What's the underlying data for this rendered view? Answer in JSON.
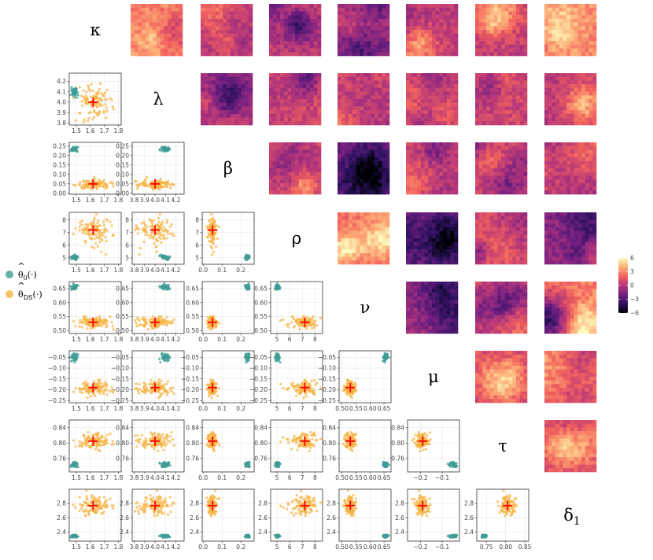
{
  "chart_data": {
    "type": "scatter",
    "title": "",
    "parameters": [
      "κ",
      "λ",
      "β",
      "ρ",
      "ν",
      "μ",
      "τ",
      "δ1"
    ],
    "parameter_labels": [
      {
        "base": "κ",
        "sub": ""
      },
      {
        "base": "λ",
        "sub": ""
      },
      {
        "base": "β",
        "sub": ""
      },
      {
        "base": "ρ",
        "sub": ""
      },
      {
        "base": "ν",
        "sub": ""
      },
      {
        "base": "μ",
        "sub": ""
      },
      {
        "base": "τ",
        "sub": ""
      },
      {
        "base": "δ",
        "sub": "1"
      }
    ],
    "legend": {
      "placement": "left",
      "entries": [
        {
          "label_base": "θ",
          "label_hat": "^",
          "label_sub": "0",
          "label_suffix": "(·)",
          "color": "#3f9c96"
        },
        {
          "label_base": "θ",
          "label_hat": "^",
          "label_sub": "DS",
          "label_suffix": "(·)",
          "color": "#f7b445"
        }
      ]
    },
    "series": [
      {
        "label_sub": "0",
        "color": "#3f9c96",
        "centers": [
          1.49,
          4.1,
          0.235,
          5.05,
          0.655,
          -0.05,
          0.745,
          2.34
        ],
        "spreads": [
          0.012,
          0.025,
          0.006,
          0.09,
          0.004,
          0.008,
          0.004,
          0.012
        ],
        "n_points": 40
      },
      {
        "label_sub": "DS",
        "color": "#f7b445",
        "centers": [
          1.62,
          4.0,
          0.05,
          7.2,
          0.53,
          -0.19,
          0.805,
          2.77
        ],
        "spreads": [
          0.065,
          0.085,
          0.012,
          0.5,
          0.01,
          0.015,
          0.01,
          0.07
        ],
        "n_points": 110
      }
    ],
    "true_values": {
      "marker": "+",
      "color": "#ff0000",
      "values": [
        1.62,
        4.0,
        0.05,
        7.2,
        0.53,
        -0.19,
        0.805,
        2.77
      ]
    },
    "axes": {
      "limits": [
        [
          1.45,
          1.82
        ],
        [
          3.78,
          4.28
        ],
        [
          -0.005,
          0.27
        ],
        [
          4.5,
          8.6
        ],
        [
          0.49,
          0.675
        ],
        [
          -0.26,
          -0.02
        ],
        [
          0.725,
          0.86
        ],
        [
          2.27,
          3.0
        ]
      ],
      "ticks": [
        {
          "x": [
            {
              "v": 1.5,
              "t": "1.5"
            },
            {
              "v": 1.6,
              "t": "1.6"
            },
            {
              "v": 1.7,
              "t": "1.7"
            },
            {
              "v": 1.8,
              "t": "1.8"
            }
          ]
        },
        {
          "x": [
            {
              "v": 3.8,
              "t": "3.8"
            },
            {
              "v": 3.9,
              "t": "3.9"
            },
            {
              "v": 4.0,
              "t": "4.0"
            },
            {
              "v": 4.1,
              "t": "4.1"
            },
            {
              "v": 4.2,
              "t": "4.2"
            }
          ],
          "y": [
            {
              "v": 3.8,
              "t": "3.8"
            },
            {
              "v": 3.9,
              "t": "3.9"
            },
            {
              "v": 4.0,
              "t": "4.0"
            },
            {
              "v": 4.1,
              "t": "4.1"
            },
            {
              "v": 4.2,
              "t": "4.2"
            }
          ]
        },
        {
          "x": [
            {
              "v": 0.0,
              "t": "0.0"
            },
            {
              "v": 0.1,
              "t": "0.1"
            },
            {
              "v": 0.2,
              "t": "0.2"
            }
          ],
          "y": [
            {
              "v": 0.0,
              "t": "0.00"
            },
            {
              "v": 0.05,
              "t": "0.05"
            },
            {
              "v": 0.1,
              "t": "0.10"
            },
            {
              "v": 0.15,
              "t": "0.15"
            },
            {
              "v": 0.2,
              "t": "0.20"
            },
            {
              "v": 0.25,
              "t": "0.25"
            }
          ]
        },
        {
          "x": [
            {
              "v": 5,
              "t": "5"
            },
            {
              "v": 6,
              "t": "6"
            },
            {
              "v": 7,
              "t": "7"
            },
            {
              "v": 8,
              "t": "8"
            }
          ],
          "y": [
            {
              "v": 5,
              "t": "5"
            },
            {
              "v": 6,
              "t": "6"
            },
            {
              "v": 7,
              "t": "7"
            },
            {
              "v": 8,
              "t": "8"
            }
          ]
        },
        {
          "x": [
            {
              "v": 0.5,
              "t": "0.50"
            },
            {
              "v": 0.55,
              "t": "0.55"
            },
            {
              "v": 0.6,
              "t": "0.60"
            },
            {
              "v": 0.65,
              "t": "0.65"
            }
          ],
          "y": [
            {
              "v": 0.5,
              "t": "0.50"
            },
            {
              "v": 0.55,
              "t": "0.55"
            },
            {
              "v": 0.6,
              "t": "0.60"
            },
            {
              "v": 0.65,
              "t": "0.65"
            }
          ]
        },
        {
          "x": [
            {
              "v": -0.2,
              "t": "−0.2"
            },
            {
              "v": -0.1,
              "t": "−0.1"
            }
          ],
          "y": [
            {
              "v": -0.25,
              "t": "−0.25"
            },
            {
              "v": -0.2,
              "t": "−0.20"
            },
            {
              "v": -0.15,
              "t": "−0.15"
            },
            {
              "v": -0.1,
              "t": "−0.10"
            },
            {
              "v": -0.05,
              "t": "−0.05"
            }
          ]
        },
        {
          "x": [
            {
              "v": 0.75,
              "t": "0.75"
            },
            {
              "v": 0.8,
              "t": "0.80"
            },
            {
              "v": 0.85,
              "t": "0.85"
            }
          ],
          "y": [
            {
              "v": 0.76,
              "t": "0.76"
            },
            {
              "v": 0.8,
              "t": "0.80"
            },
            {
              "v": 0.84,
              "t": "0.84"
            }
          ]
        },
        {
          "y": [
            {
              "v": 2.4,
              "t": "2.4"
            },
            {
              "v": 2.6,
              "t": "2.6"
            },
            {
              "v": 2.8,
              "t": "2.8"
            }
          ]
        }
      ],
      "grid": true
    },
    "heatmaps": {
      "placement": "upper-triangle",
      "cells": [
        {
          "row": 0,
          "col": 1,
          "mean": 3.2,
          "seed": 11
        },
        {
          "row": 0,
          "col": 2,
          "mean": 0.6,
          "seed": 12
        },
        {
          "row": 0,
          "col": 3,
          "mean": 0.3,
          "seed": 13
        },
        {
          "row": 0,
          "col": 4,
          "mean": -0.4,
          "seed": 14
        },
        {
          "row": 0,
          "col": 5,
          "mean": 0.2,
          "seed": 15
        },
        {
          "row": 0,
          "col": 6,
          "mean": 0.4,
          "seed": 16
        },
        {
          "row": 0,
          "col": 7,
          "mean": 3.0,
          "seed": 17
        },
        {
          "row": 1,
          "col": 2,
          "mean": 0.0,
          "seed": 21
        },
        {
          "row": 1,
          "col": 3,
          "mean": 0.8,
          "seed": 22
        },
        {
          "row": 1,
          "col": 4,
          "mean": 0.0,
          "seed": 23
        },
        {
          "row": 1,
          "col": 5,
          "mean": 0.7,
          "seed": 24
        },
        {
          "row": 1,
          "col": 6,
          "mean": 0.5,
          "seed": 25
        },
        {
          "row": 1,
          "col": 7,
          "mean": 0.1,
          "seed": 26
        },
        {
          "row": 2,
          "col": 3,
          "mean": 1.2,
          "seed": 31
        },
        {
          "row": 2,
          "col": 4,
          "mean": -2.6,
          "seed": 32
        },
        {
          "row": 2,
          "col": 5,
          "mean": 0.8,
          "seed": 33
        },
        {
          "row": 2,
          "col": 6,
          "mean": 0.7,
          "seed": 34
        },
        {
          "row": 2,
          "col": 7,
          "mean": -0.2,
          "seed": 35
        },
        {
          "row": 3,
          "col": 4,
          "mean": 2.4,
          "seed": 41
        },
        {
          "row": 3,
          "col": 5,
          "mean": -2.2,
          "seed": 42
        },
        {
          "row": 3,
          "col": 6,
          "mean": 0.8,
          "seed": 43
        },
        {
          "row": 3,
          "col": 7,
          "mean": -1.2,
          "seed": 44
        },
        {
          "row": 4,
          "col": 5,
          "mean": -0.8,
          "seed": 51
        },
        {
          "row": 4,
          "col": 6,
          "mean": 0.9,
          "seed": 52
        },
        {
          "row": 4,
          "col": 7,
          "mean": 2.8,
          "seed": 53
        },
        {
          "row": 5,
          "col": 6,
          "mean": 0.6,
          "seed": 61
        },
        {
          "row": 5,
          "col": 7,
          "mean": 1.8,
          "seed": 62
        },
        {
          "row": 6,
          "col": 7,
          "mean": 1.0,
          "seed": 71
        }
      ],
      "colorbar": {
        "range": [
          -6,
          6
        ],
        "ticks": [
          {
            "v": 6,
            "t": "6"
          },
          {
            "v": 3,
            "t": "3"
          },
          {
            "v": 0,
            "t": "0"
          },
          {
            "v": -3,
            "t": "−3"
          },
          {
            "v": -6,
            "t": "−6"
          }
        ],
        "stops": [
          "#000004",
          "#2c115f",
          "#721f81",
          "#b73779",
          "#f1605d",
          "#feaf77",
          "#fcfdbf"
        ]
      }
    }
  }
}
